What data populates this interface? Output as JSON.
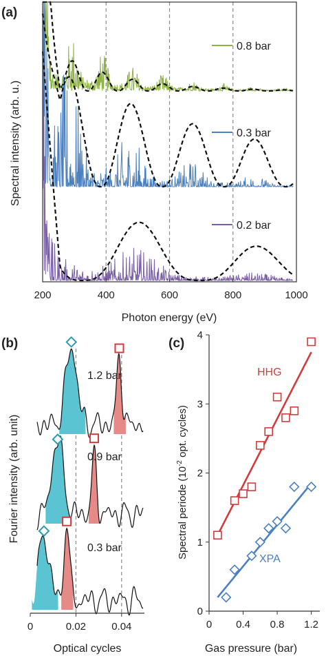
{
  "chart_data": [
    {
      "panel": "(a)",
      "type": "line",
      "xlabel": "Photon energy (eV)",
      "ylabel": "Spectral intensity (arb. u.)",
      "xlim": [
        200,
        1000
      ],
      "x_ticks": [
        "200",
        "400",
        "600",
        "800",
        "1000"
      ],
      "gridlines_x": [
        400,
        600,
        800
      ],
      "series": [
        {
          "name": "0.8 bar",
          "color": "#8db33f",
          "fringe_period_ev": 95,
          "envelope_peaks_ev": [
            295,
            480,
            680,
            880
          ]
        },
        {
          "name": "0.3 bar",
          "color": "#4a7fc0",
          "fringe_period_ev": 195,
          "envelope_peaks_ev": [
            285,
            480,
            680,
            880
          ]
        },
        {
          "name": "0.2 bar",
          "color": "#7d5fa8",
          "fringe_period_ev": 370,
          "envelope_peaks_ev": [
            510,
            880
          ]
        }
      ]
    },
    {
      "panel": "(b)",
      "type": "line",
      "xlabel": "Optical cycles",
      "ylabel": "Fourier intensity (arb. unit)",
      "xlim": [
        0,
        0.05
      ],
      "x_ticks": [
        "0",
        "0.02",
        "0.04"
      ],
      "gridlines_x": [
        0.02,
        0.04
      ],
      "traces": [
        {
          "label": "1.2 bar",
          "xpa_peak": 0.018,
          "hhg_peak": 0.039
        },
        {
          "label": "0.9 bar",
          "xpa_peak": 0.012,
          "hhg_peak": 0.028
        },
        {
          "label": "0.3 bar",
          "xpa_peak": 0.006,
          "hhg_peak": 0.016
        }
      ],
      "colors": {
        "xpa_fill": "#5bc4d3",
        "hhg_fill": "#e58a86",
        "xpa_marker": "#2a9bb0",
        "hhg_marker": "#d23b3b"
      }
    },
    {
      "panel": "(c)",
      "type": "scatter",
      "xlabel": "Gas pressure (bar)",
      "ylabel_prefix": "Spectral periode (10",
      "ylabel_sup": "-2",
      "ylabel_suffix": " opt. cycles)",
      "xlim": [
        0,
        1.3
      ],
      "ylim": [
        0,
        4
      ],
      "x_ticks": [
        "0",
        "0.4",
        "0.8",
        "1.2"
      ],
      "y_ticks": [
        "0",
        "1",
        "2",
        "3",
        "4"
      ],
      "series": [
        {
          "name": "HHG",
          "color": "#d23b3b",
          "marker": "square",
          "x": [
            0.1,
            0.3,
            0.4,
            0.5,
            0.6,
            0.7,
            0.8,
            0.9,
            1.0,
            1.2
          ],
          "y": [
            1.1,
            1.6,
            1.7,
            1.8,
            2.4,
            2.6,
            3.1,
            2.8,
            2.9,
            3.9
          ],
          "fit": [
            [
              0.1,
              1.1
            ],
            [
              1.2,
              3.75
            ]
          ]
        },
        {
          "name": "XPA",
          "color": "#4a7fc0",
          "marker": "diamond",
          "x": [
            0.2,
            0.3,
            0.5,
            0.6,
            0.7,
            0.8,
            0.9,
            1.0,
            1.2
          ],
          "y": [
            0.2,
            0.6,
            0.8,
            1.0,
            1.2,
            1.3,
            1.2,
            1.8,
            1.8
          ],
          "fit": [
            [
              0.1,
              0.2
            ],
            [
              1.2,
              1.85
            ]
          ]
        }
      ]
    }
  ]
}
